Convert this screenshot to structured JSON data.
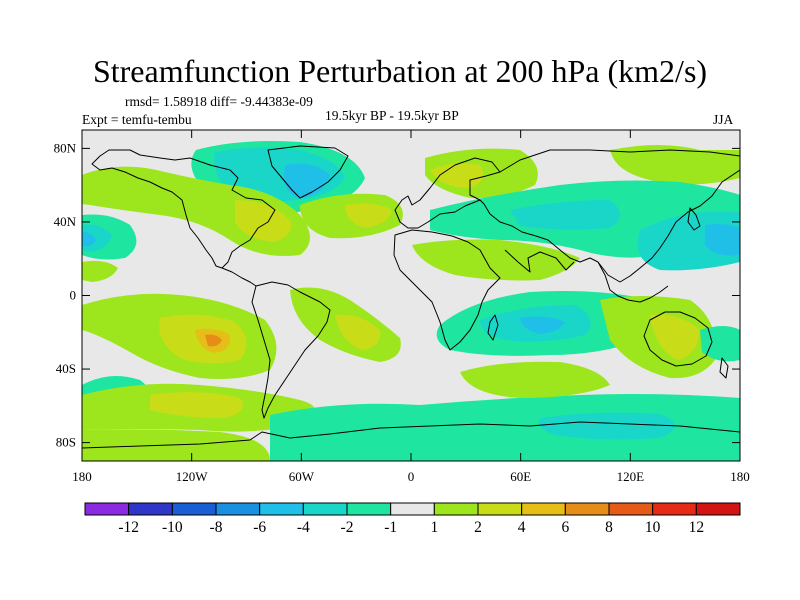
{
  "title": "Streamfunction Perturbation at 200 hPa (km2/s)",
  "stats": "rmsd= 1.58918 diff= -9.44383e-09",
  "experiment": "Expt = temfu-tembu",
  "period": "19.5kyr BP - 19.5kyr BP",
  "season": "JJA",
  "map": {
    "lat_ticks": [
      {
        "value": 80,
        "label": "80N"
      },
      {
        "value": 40,
        "label": "40N"
      },
      {
        "value": 0,
        "label": "0"
      },
      {
        "value": -40,
        "label": "40S"
      },
      {
        "value": -80,
        "label": "80S"
      }
    ],
    "lon_ticks": [
      {
        "value": -180,
        "label": "180"
      },
      {
        "value": -120,
        "label": "120W"
      },
      {
        "value": -60,
        "label": "60W"
      },
      {
        "value": 0,
        "label": "0"
      },
      {
        "value": 60,
        "label": "60E"
      },
      {
        "value": 120,
        "label": "120E"
      },
      {
        "value": 180,
        "label": "180"
      }
    ],
    "lon_range": [
      -180,
      180
    ],
    "lat_range": [
      -90,
      90
    ],
    "level_colors": {
      "lt_-12": "#8a2be2",
      "-12_-10": "#2f37c8",
      "-10_-8": "#1a5ed6",
      "-8_-6": "#1a90e0",
      "-6_-4": "#1fbfe8",
      "-4_-2": "#1ad6c8",
      "-2_-1": "#1ee6a0",
      "-1_1": "#e8e8e8",
      "1_2": "#9de61e",
      "2_4": "#c8dc18",
      "4_6": "#e6be18",
      "6_8": "#e68c18",
      "8_10": "#e65a18",
      "10_12": "#e62a18",
      "gt_12": "#d21414"
    }
  },
  "colorbar": {
    "levels": [
      -12,
      -10,
      -8,
      -6,
      -4,
      -2,
      -1,
      1,
      2,
      4,
      6,
      8,
      10,
      12
    ],
    "labels": [
      "-12",
      "-10",
      "-8",
      "-6",
      "-4",
      "-2",
      "-1",
      "1",
      "2",
      "4",
      "6",
      "8",
      "10",
      "12"
    ],
    "colors": [
      "#8a2be2",
      "#2f37c8",
      "#1a5ed6",
      "#1a90e0",
      "#1fbfe8",
      "#1ad6c8",
      "#1ee6a0",
      "#e8e8e8",
      "#9de61e",
      "#c8dc18",
      "#e6be18",
      "#e68c18",
      "#e65a18",
      "#e62a18",
      "#d21414"
    ]
  }
}
